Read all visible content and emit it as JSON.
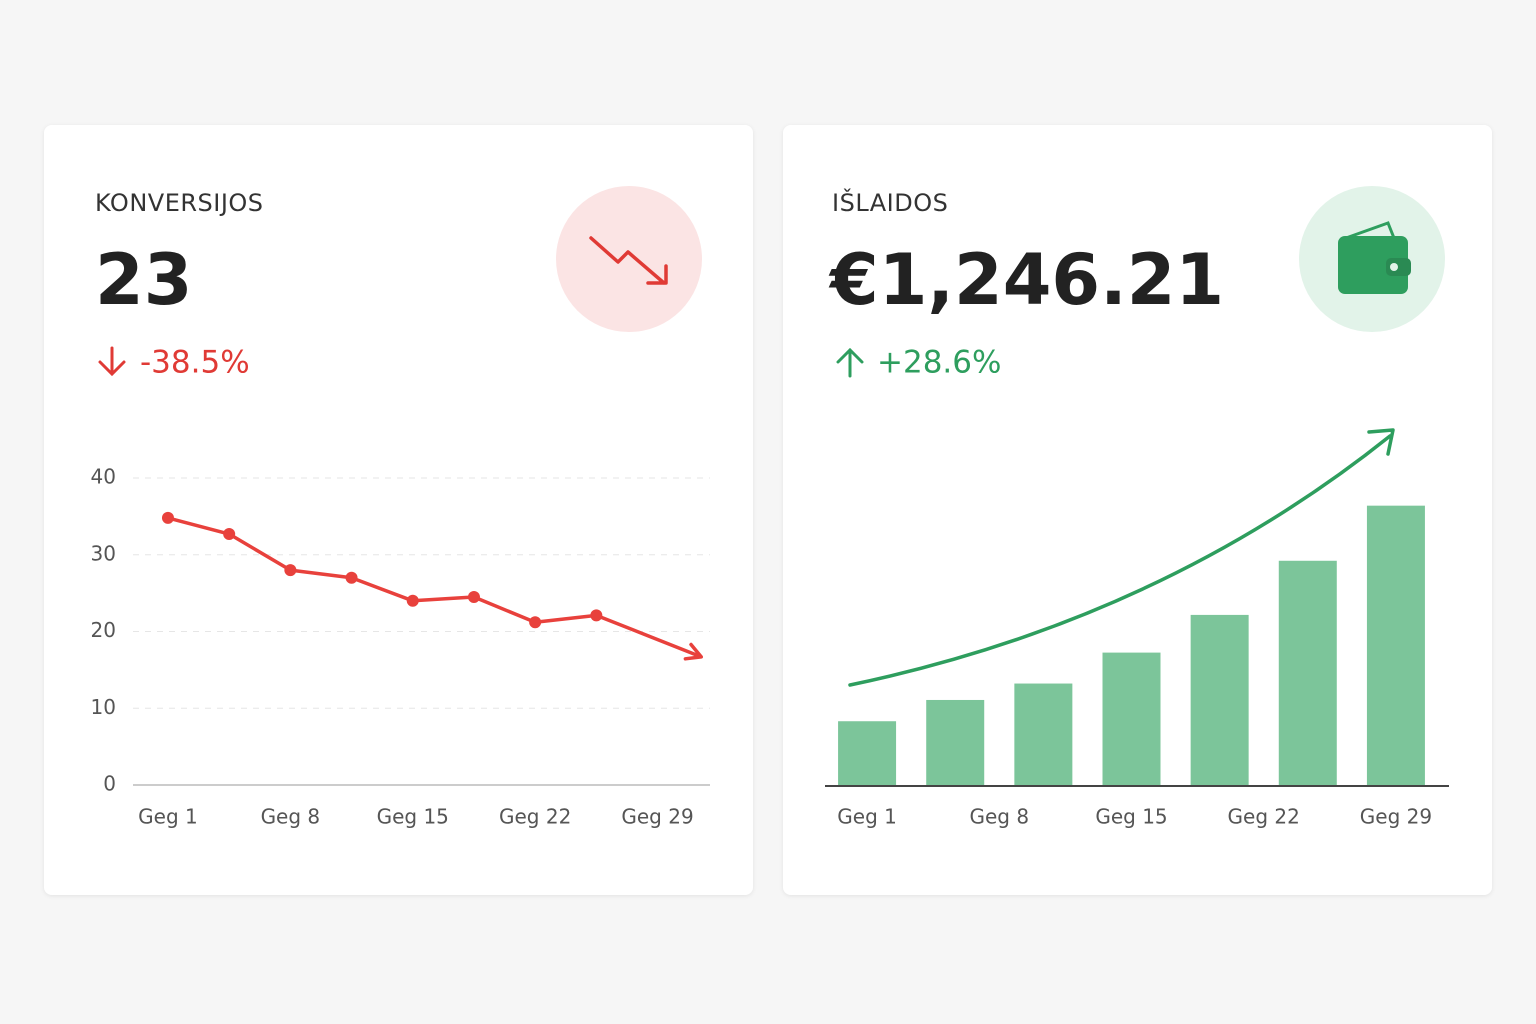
{
  "chart_data": [
    {
      "type": "line",
      "title": "KONVERSIJOS",
      "kpi": "23",
      "change": "-38.5%",
      "color": "#e8413c",
      "x": [
        1,
        4.5,
        8,
        11.5,
        15,
        18.5,
        22,
        25.5,
        31.5
      ],
      "values": [
        34.8,
        32.7,
        28,
        27,
        24,
        24.5,
        21.2,
        22.1,
        16.7
      ],
      "xlim": [
        -1,
        32
      ],
      "xticks": [
        {
          "value": 1,
          "label": "Geg 1"
        },
        {
          "value": 8,
          "label": "Geg 8"
        },
        {
          "value": 15,
          "label": "Geg 15"
        },
        {
          "value": 22,
          "label": "Geg 22"
        },
        {
          "value": 29,
          "label": "Geg 29"
        }
      ],
      "ylim": [
        0,
        40
      ],
      "yticks": [
        0,
        10,
        20,
        30,
        40
      ],
      "grid": true
    },
    {
      "type": "bar",
      "title": "IŠLAIDOS",
      "kpi": "€1,246.21",
      "change": "+28.6%",
      "color": "#7cc59a",
      "x": [
        0,
        1,
        2,
        3,
        4,
        5,
        6
      ],
      "values": [
        67,
        89,
        106,
        138,
        177,
        233,
        290
      ],
      "xlim": [
        -0.5,
        6.5
      ],
      "xticks": [
        {
          "value": 0,
          "label": "Geg 1"
        },
        {
          "value": 1.5,
          "label": "Geg 8"
        },
        {
          "value": 3,
          "label": "Geg 15"
        },
        {
          "value": 4.5,
          "label": "Geg 22"
        },
        {
          "value": 6,
          "label": "Geg 29"
        }
      ],
      "ylim": [
        0,
        300
      ]
    }
  ]
}
